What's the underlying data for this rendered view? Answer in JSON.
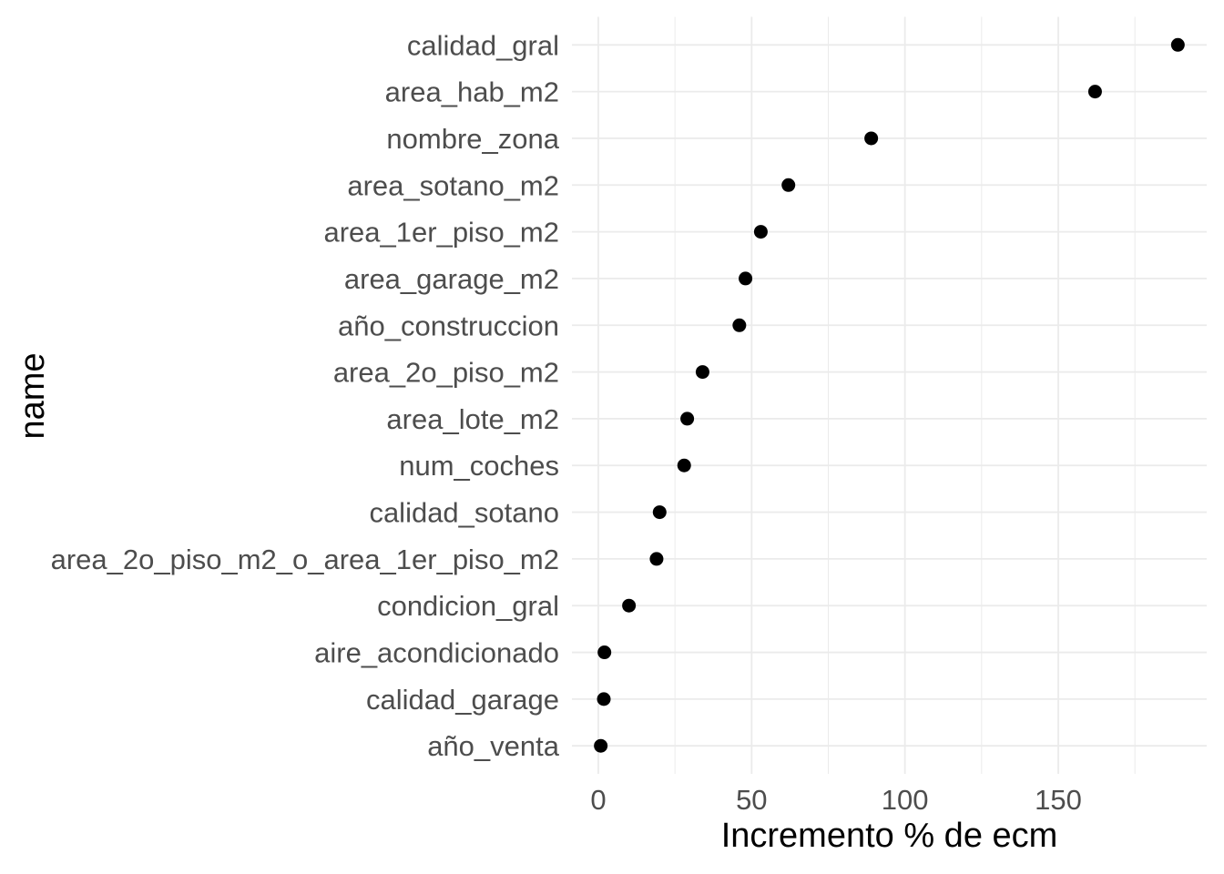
{
  "chart_data": {
    "type": "scatter",
    "subtype": "horizontal-dot-plot",
    "title": "",
    "xlabel": "Incremento % de ecm",
    "ylabel": "name",
    "categories": [
      "calidad_gral",
      "area_hab_m2",
      "nombre_zona",
      "area_sotano_m2",
      "area_1er_piso_m2",
      "area_garage_m2",
      "año_construccion",
      "area_2o_piso_m2",
      "area_lote_m2",
      "num_coches",
      "calidad_sotano",
      "area_2o_piso_m2_o_area_1er_piso_m2",
      "condicion_gral",
      "aire_acondicionado",
      "calidad_garage",
      "año_venta"
    ],
    "values": [
      189,
      162,
      89,
      62,
      53,
      48,
      46,
      34,
      29,
      28,
      20,
      19,
      10,
      2,
      1.8,
      0.8
    ],
    "x_ticks": [
      0,
      50,
      100,
      150
    ],
    "x_minor_ticks": [
      25,
      75,
      125,
      175
    ],
    "xlim": [
      -8.6,
      198.4
    ],
    "grid": true,
    "legend": "none",
    "colors": {
      "point": "#000000",
      "grid": "#ebebeb",
      "axis_text": "#4d4d4d",
      "axis_title": "#000000",
      "background": "#ffffff"
    }
  }
}
